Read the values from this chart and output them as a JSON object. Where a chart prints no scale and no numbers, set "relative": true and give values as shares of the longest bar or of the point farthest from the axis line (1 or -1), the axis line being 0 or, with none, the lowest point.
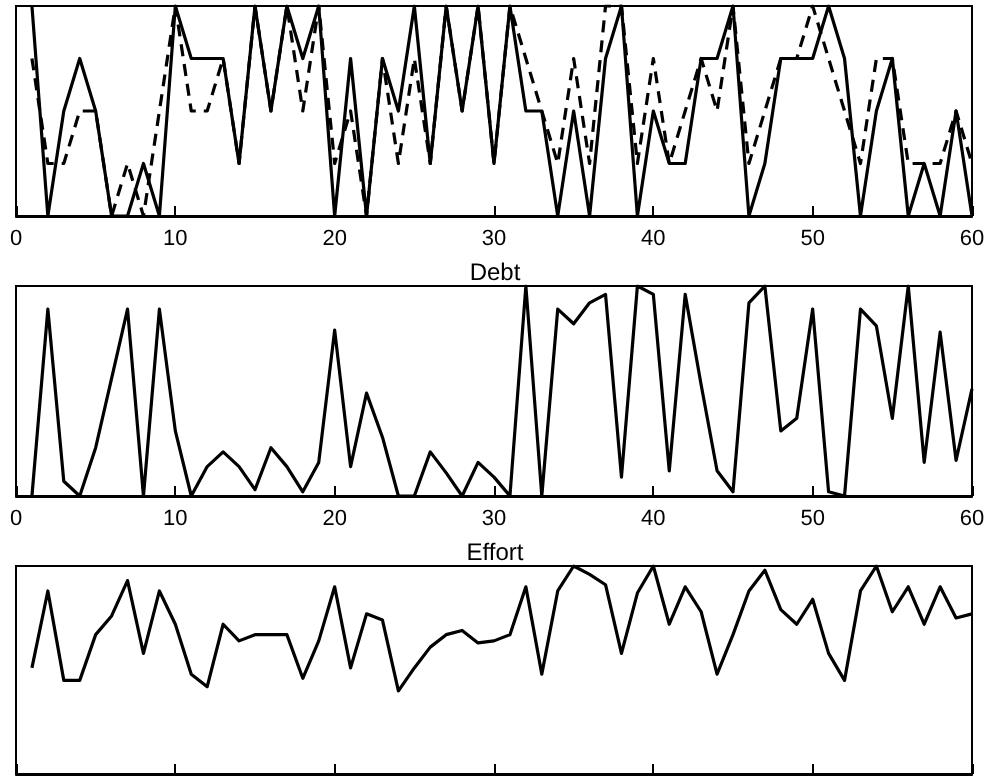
{
  "chart_data": [
    {
      "type": "line",
      "relative": true,
      "tick_labels": "x",
      "xlim": [
        0,
        60
      ],
      "xticks": [
        0,
        10,
        20,
        30,
        40,
        50,
        60
      ],
      "x": [
        1,
        2,
        3,
        4,
        5,
        6,
        7,
        8,
        9,
        10,
        11,
        12,
        13,
        14,
        15,
        16,
        17,
        18,
        19,
        20,
        21,
        22,
        23,
        24,
        25,
        26,
        27,
        28,
        29,
        30,
        31,
        32,
        33,
        34,
        35,
        36,
        37,
        38,
        39,
        40,
        41,
        42,
        43,
        44,
        45,
        46,
        47,
        48,
        49,
        50,
        51,
        52,
        53,
        54,
        55,
        56,
        57,
        58,
        59,
        60
      ],
      "series": [
        {
          "color": "#000000",
          "line_style": "solid",
          "values": [
            1,
            0,
            0.5,
            0.75,
            0.5,
            0,
            0,
            0.25,
            0,
            1,
            0.75,
            0.75,
            0.75,
            0.25,
            1,
            0.5,
            1,
            0.75,
            1,
            0,
            0.75,
            0,
            0.75,
            0.5,
            1,
            0.25,
            1,
            0.5,
            1,
            0.25,
            1,
            0.5,
            0.5,
            0,
            0.5,
            0,
            0.75,
            1,
            0,
            0.5,
            0.25,
            0.25,
            0.75,
            0.75,
            1,
            0,
            0.25,
            0.75,
            0.75,
            0.75,
            1,
            0.75,
            0,
            0.5,
            0.75,
            0,
            0.25,
            0,
            0.5,
            0
          ]
        },
        {
          "color": "#000000",
          "line_style": "dashed",
          "values": [
            0.75,
            0.25,
            0.25,
            0.5,
            0.5,
            0,
            0.25,
            0,
            0.5,
            1,
            0.5,
            0.5,
            0.75,
            0.25,
            1,
            0.5,
            1,
            0.5,
            1,
            0.25,
            0.5,
            0,
            0.75,
            0.25,
            0.75,
            0.25,
            1,
            0.5,
            1,
            0.25,
            1,
            0.75,
            0.5,
            0.25,
            0.75,
            0.25,
            1,
            1,
            0.25,
            0.75,
            0.25,
            0.5,
            0.75,
            0.5,
            1,
            0.25,
            0.5,
            0.75,
            0.75,
            1,
            0.75,
            0.5,
            0.25,
            0.75,
            0.75,
            0.25,
            0.25,
            0.25,
            0.5,
            0.25
          ]
        }
      ]
    },
    {
      "type": "line",
      "title": "Debt",
      "relative": true,
      "tick_labels": "x",
      "xlim": [
        0,
        60
      ],
      "xticks": [
        0,
        10,
        20,
        30,
        40,
        50,
        60
      ],
      "x": [
        1,
        2,
        3,
        4,
        5,
        6,
        7,
        8,
        9,
        10,
        11,
        12,
        13,
        14,
        15,
        16,
        17,
        18,
        19,
        20,
        21,
        22,
        23,
        24,
        25,
        26,
        27,
        28,
        29,
        30,
        31,
        32,
        33,
        34,
        35,
        36,
        37,
        38,
        39,
        40,
        41,
        42,
        43,
        44,
        45,
        46,
        47,
        48,
        49,
        50,
        51,
        52,
        53,
        54,
        55,
        56,
        57,
        58,
        59,
        60
      ],
      "series": [
        {
          "color": "#000000",
          "line_style": "solid",
          "values": [
            0,
            0.89,
            0.07,
            0,
            0.23,
            0.56,
            0.89,
            0,
            0.89,
            0.31,
            0,
            0.14,
            0.21,
            0.14,
            0.03,
            0.23,
            0.14,
            0.02,
            0.16,
            0.79,
            0.14,
            0.49,
            0.28,
            0,
            0,
            0.21,
            0.11,
            0,
            0.16,
            0.09,
            0,
            1,
            0,
            0.89,
            0.82,
            0.92,
            0.96,
            0.09,
            1,
            0.96,
            0.12,
            0.96,
            0.53,
            0.12,
            0.02,
            0.92,
            1,
            0.31,
            0.37,
            0.89,
            0.02,
            0,
            0.89,
            0.81,
            0.37,
            1,
            0.16,
            0.78,
            0.17,
            0.51
          ]
        }
      ]
    },
    {
      "type": "line",
      "title": "Effort",
      "relative": true,
      "tick_labels": false,
      "xlim": [
        0,
        60
      ],
      "xticks": [
        0,
        10,
        20,
        30,
        40,
        50,
        60
      ],
      "x": [
        1,
        2,
        3,
        4,
        5,
        6,
        7,
        8,
        9,
        10,
        11,
        12,
        13,
        14,
        15,
        16,
        17,
        18,
        19,
        20,
        21,
        22,
        23,
        24,
        25,
        26,
        27,
        28,
        29,
        30,
        31,
        32,
        33,
        34,
        35,
        36,
        37,
        38,
        39,
        40,
        41,
        42,
        43,
        44,
        45,
        46,
        47,
        48,
        49,
        50,
        51,
        52,
        53,
        54,
        55,
        56,
        57,
        58,
        59,
        60
      ],
      "series": [
        {
          "color": "#000000",
          "line_style": "solid",
          "values": [
            0.51,
            0.88,
            0.45,
            0.45,
            0.67,
            0.76,
            0.93,
            0.58,
            0.88,
            0.72,
            0.48,
            0.42,
            0.72,
            0.64,
            0.67,
            0.67,
            0.67,
            0.46,
            0.64,
            0.9,
            0.51,
            0.77,
            0.74,
            0.4,
            0.51,
            0.61,
            0.67,
            0.69,
            0.63,
            0.64,
            0.67,
            0.9,
            0.48,
            0.88,
            1,
            0.96,
            0.91,
            0.58,
            0.87,
            1,
            0.72,
            0.9,
            0.78,
            0.48,
            0.67,
            0.88,
            0.98,
            0.79,
            0.72,
            0.84,
            0.58,
            0.45,
            0.88,
            1,
            0.78,
            0.9,
            0.72,
            0.9,
            0.75,
            0.77
          ]
        }
      ]
    }
  ]
}
